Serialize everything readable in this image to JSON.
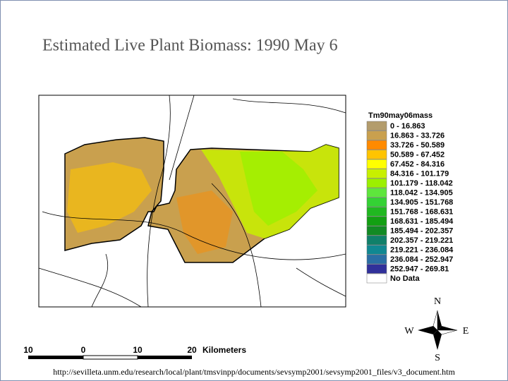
{
  "title": "Estimated Live Plant Biomass: 1990 May 6",
  "legend": {
    "title": "Tm90may06mass",
    "items": [
      {
        "label": "0 - 16.863",
        "color": "#b39c6c"
      },
      {
        "label": "16.863 - 33.726",
        "color": "#c9a04e"
      },
      {
        "label": "33.726 - 50.589",
        "color": "#ff8a00"
      },
      {
        "label": "50.589 - 67.452",
        "color": "#ffc400"
      },
      {
        "label": "67.452 - 84.316",
        "color": "#ffff00"
      },
      {
        "label": "84.316 - 101.179",
        "color": "#c8f000"
      },
      {
        "label": "101.179 - 118.042",
        "color": "#9cf000"
      },
      {
        "label": "118.042 - 134.905",
        "color": "#5ee63c"
      },
      {
        "label": "134.905 - 151.768",
        "color": "#34d234"
      },
      {
        "label": "151.768 - 168.631",
        "color": "#20b820"
      },
      {
        "label": "168.631 - 185.494",
        "color": "#12a012"
      },
      {
        "label": "185.494 - 202.357",
        "color": "#128a24"
      },
      {
        "label": "202.357 - 219.221",
        "color": "#10806a"
      },
      {
        "label": "219.221 - 236.084",
        "color": "#108892"
      },
      {
        "label": "236.084 - 252.947",
        "color": "#2a6ea4"
      },
      {
        "label": "252.947 - 269.81",
        "color": "#30309a"
      },
      {
        "label": "No Data",
        "color": "#ffffff"
      }
    ]
  },
  "scale_bar": {
    "ticks": [
      "10",
      "0",
      "10",
      "20"
    ],
    "unit": "Kilometers"
  },
  "compass": {
    "north": "N",
    "south": "S",
    "east": "E",
    "west": "W"
  },
  "source_url": "http://sevilleta.unm.edu/research/local/plant/tmsvinpp/documents/sevsymp2001/sevsymp2001_files/v3_document.htm"
}
